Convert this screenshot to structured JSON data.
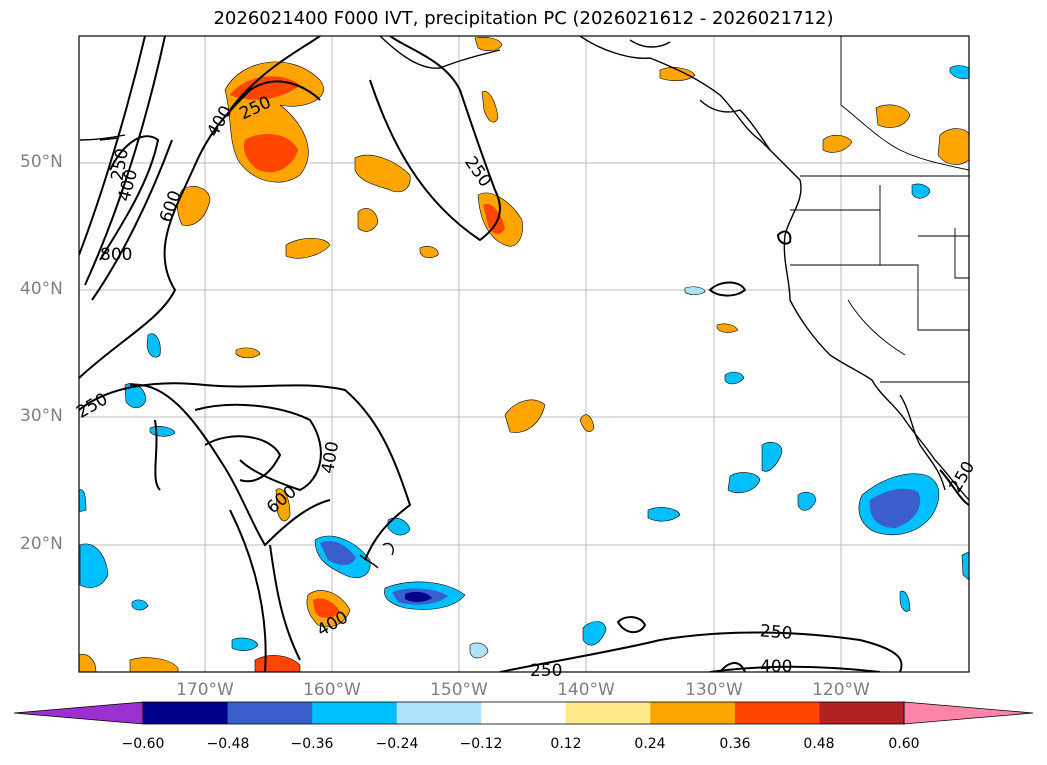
{
  "title": "2026021400 F000 IVT, precipitation PC (2026021612 - 2026021712)",
  "map": {
    "lat_labels": [
      "50°N",
      "40°N",
      "30°N",
      "20°N"
    ],
    "lon_labels": [
      "170°W",
      "160°W",
      "150°W",
      "140°W",
      "130°W",
      "120°W"
    ],
    "contour_labels": [
      "250",
      "400",
      "600",
      "800",
      "250",
      "400",
      "250",
      "600",
      "400",
      "400",
      "250",
      "250",
      "400",
      "250",
      "250"
    ]
  },
  "colorbar": {
    "ticks": [
      "−0.60",
      "−0.48",
      "−0.36",
      "−0.24",
      "−0.12",
      "0.12",
      "0.24",
      "0.36",
      "0.48",
      "0.60"
    ],
    "colors": [
      "#9b30d0",
      "#00008b",
      "#3a5fcd",
      "#00bfff",
      "#aee2fa",
      "#ffffff",
      "#ffeb8a",
      "#ffa500",
      "#ff4500",
      "#b22222",
      "#ff85a8"
    ]
  }
}
